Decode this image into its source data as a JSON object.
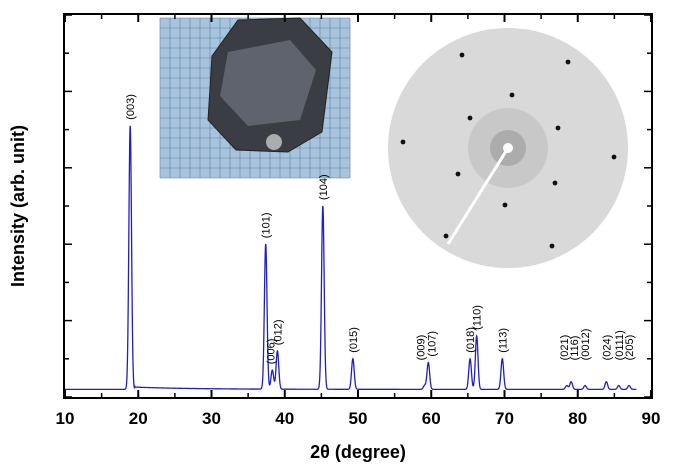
{
  "chart_data": {
    "type": "line",
    "xlabel": "2θ (degree)",
    "ylabel": "Intensity (arb. unit)",
    "xlim": [
      10,
      90
    ],
    "x_ticks": [
      "10",
      "20",
      "30",
      "40",
      "50",
      "60",
      "70",
      "80",
      "90"
    ],
    "y_ticks_labeled": false,
    "grid": false,
    "line_color": "#1f1fc8",
    "baseline": 0.02,
    "peaks": [
      {
        "label": "(003)",
        "x": 18.9,
        "intensity": 0.69
      },
      {
        "label": "(101)",
        "x": 37.4,
        "intensity": 0.38
      },
      {
        "label": "(006)",
        "x": 38.3,
        "intensity": 0.05
      },
      {
        "label": "(012)",
        "x": 39.0,
        "intensity": 0.1
      },
      {
        "label": "(104)",
        "x": 45.2,
        "intensity": 0.48
      },
      {
        "label": "(015)",
        "x": 49.3,
        "intensity": 0.08
      },
      {
        "label": "(009)",
        "x": 59.1,
        "intensity": 0.01
      },
      {
        "label": "(107)",
        "x": 59.6,
        "intensity": 0.07
      },
      {
        "label": "(018)",
        "x": 65.3,
        "intensity": 0.08
      },
      {
        "label": "(110)",
        "x": 66.2,
        "intensity": 0.14
      },
      {
        "label": "(113)",
        "x": 69.7,
        "intensity": 0.08
      },
      {
        "label": "(021)",
        "x": 78.5,
        "intensity": 0.01
      },
      {
        "label": "(116)",
        "x": 79.1,
        "intensity": 0.02
      },
      {
        "label": "(0012)",
        "x": 81.0,
        "intensity": 0.01
      },
      {
        "label": "(024)",
        "x": 83.9,
        "intensity": 0.02
      },
      {
        "label": "(0111)",
        "x": 85.6,
        "intensity": 0.01
      },
      {
        "label": "(205)",
        "x": 87.0,
        "intensity": 0.01
      }
    ],
    "insets": [
      {
        "subject": "crystal-photo",
        "description_icon": "hexagonal-crystal-on-grid-paper"
      },
      {
        "subject": "laue-diffraction-pattern",
        "description_icon": "laue-pattern"
      }
    ]
  }
}
